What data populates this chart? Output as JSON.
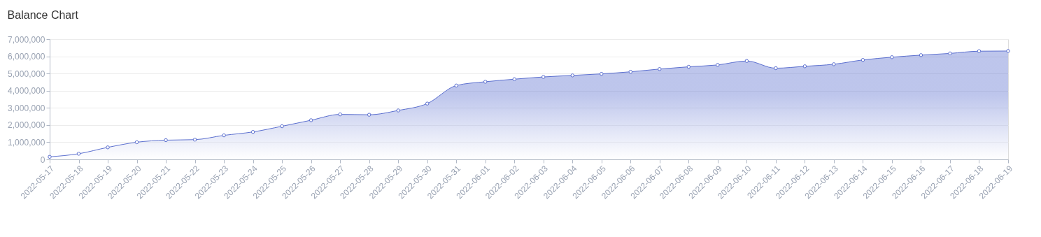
{
  "chart_data": {
    "type": "area",
    "title": "Balance Chart",
    "categories": [
      "2022-05-17",
      "2022-05-18",
      "2022-05-19",
      "2022-05-20",
      "2022-05-21",
      "2022-05-22",
      "2022-05-23",
      "2022-05-24",
      "2022-05-25",
      "2022-05-26",
      "2022-05-27",
      "2022-05-28",
      "2022-05-29",
      "2022-05-30",
      "2022-05-31",
      "2022-06-01",
      "2022-06-02",
      "2022-06-03",
      "2022-06-04",
      "2022-06-05",
      "2022-06-06",
      "2022-06-07",
      "2022-06-08",
      "2022-06-09",
      "2022-06-10",
      "2022-06-11",
      "2022-06-12",
      "2022-06-13",
      "2022-06-14",
      "2022-06-15",
      "2022-06-16",
      "2022-06-17",
      "2022-06-18",
      "2022-06-19"
    ],
    "series": [
      {
        "color": "#5b6fcf",
        "values": [
          150000,
          330000,
          700000,
          1000000,
          1120000,
          1150000,
          1400000,
          1600000,
          1930000,
          2280000,
          2620000,
          2600000,
          2850000,
          3250000,
          4300000,
          4520000,
          4670000,
          4800000,
          4890000,
          4980000,
          5100000,
          5260000,
          5390000,
          5500000,
          5730000,
          5310000,
          5420000,
          5540000,
          5790000,
          5950000,
          6070000,
          6170000,
          6300000,
          6310000
        ]
      }
    ],
    "ylim": [
      0,
      7000000
    ],
    "yticks": [
      {
        "value": 0,
        "label": "0"
      },
      {
        "value": 1000000,
        "label": "1,000,000"
      },
      {
        "value": 2000000,
        "label": "2,000,000"
      },
      {
        "value": 3000000,
        "label": "3,000,000"
      },
      {
        "value": 4000000,
        "label": "4,000,000"
      },
      {
        "value": 5000000,
        "label": "5,000,000"
      },
      {
        "value": 6000000,
        "label": "6,000,000"
      },
      {
        "value": 7000000,
        "label": "7,000,000"
      }
    ],
    "grid": "y",
    "marker": "circle"
  }
}
